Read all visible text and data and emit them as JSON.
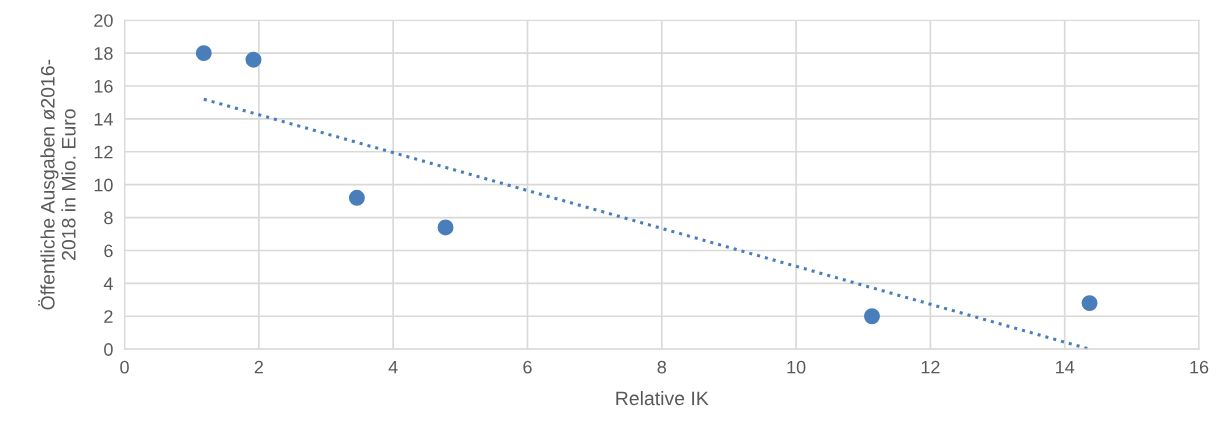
{
  "chart_data": {
    "type": "scatter",
    "xlabel": "Relative IK",
    "ylabel": "Öffentliche Ausgaben ø2016-\n2018 in Mio. Euro",
    "xlim": [
      0,
      16
    ],
    "xticks": [
      0,
      2,
      4,
      6,
      8,
      10,
      12,
      14,
      16
    ],
    "ylim": [
      0,
      20
    ],
    "yticks": [
      0,
      2,
      4,
      6,
      8,
      10,
      12,
      14,
      16,
      18,
      20
    ],
    "grid": true,
    "series": [
      {
        "marker": "circle",
        "color": "#4a7ebb",
        "x": [
          1.18,
          1.92,
          3.46,
          4.78,
          11.13,
          14.37
        ],
        "values": [
          18.0,
          17.6,
          9.2,
          7.4,
          2.0,
          2.8
        ]
      },
      {
        "type": "line",
        "color": "#4a7ebb",
        "line_style": "dotted",
        "marker": "none",
        "x": [
          1.18,
          14.37
        ],
        "values": [
          15.2,
          0.0
        ]
      }
    ]
  }
}
